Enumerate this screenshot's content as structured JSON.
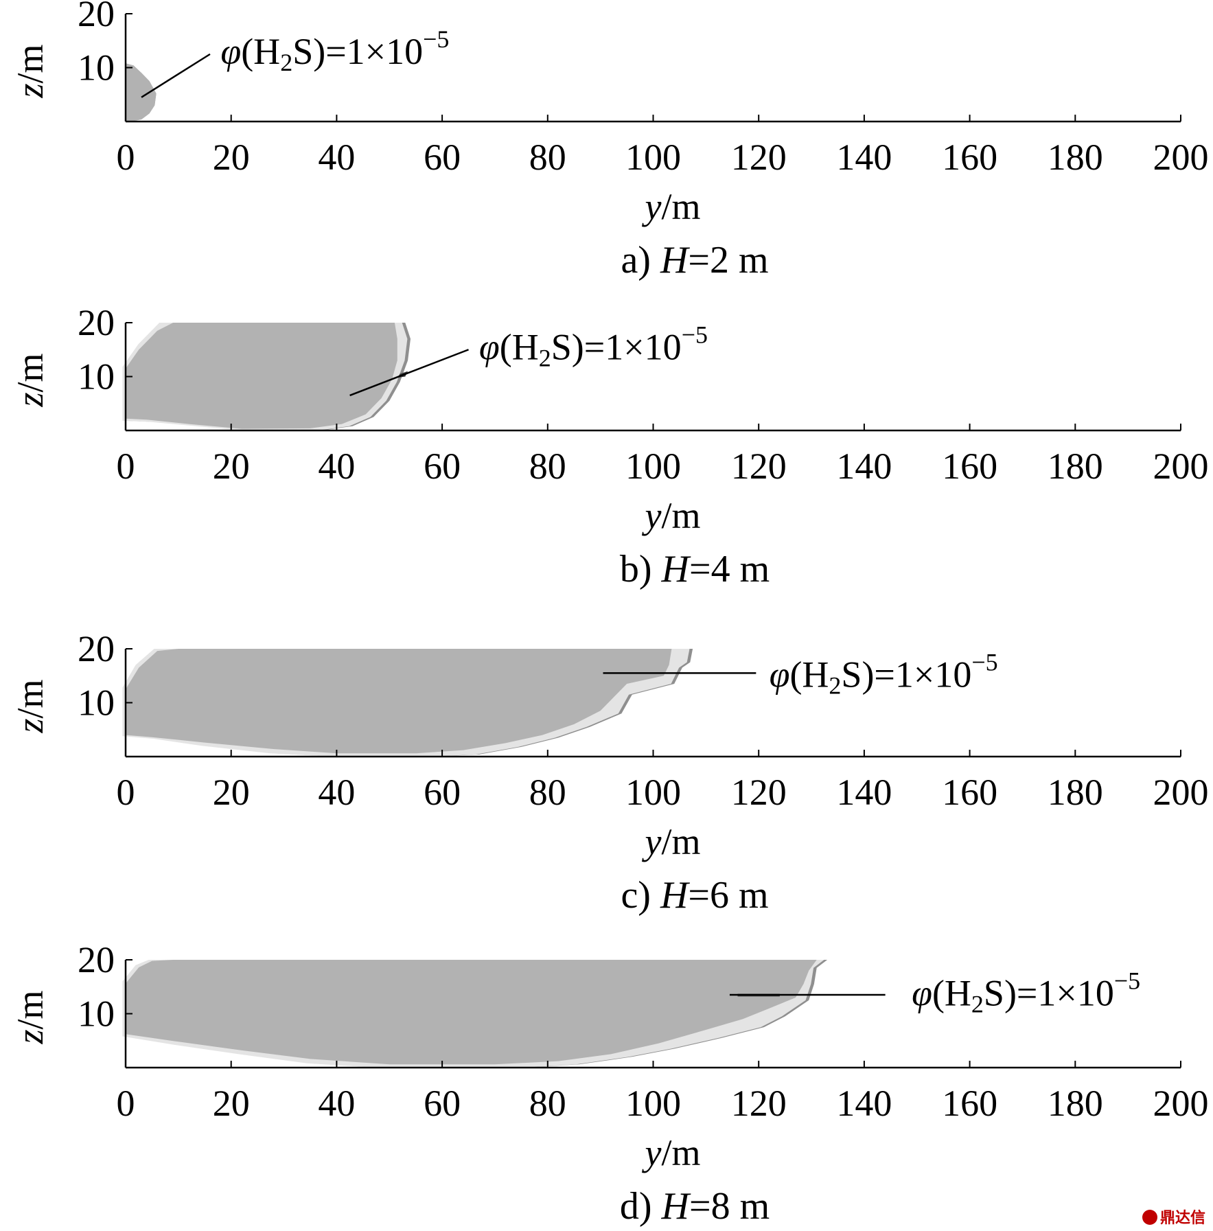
{
  "chart_data": [
    {
      "type": "area",
      "caption_prefix": "a) ",
      "caption_var": "H",
      "caption_suffix": "=2 m",
      "xlabel_var": "y",
      "xlabel_unit": "/m",
      "ylabel_var": "z",
      "ylabel_unit": "/m",
      "xlim": [
        0,
        200
      ],
      "ylim": [
        0,
        20
      ],
      "xticks": [
        0,
        20,
        40,
        60,
        80,
        100,
        120,
        140,
        160,
        180,
        200
      ],
      "yticks": [
        10,
        20
      ],
      "annotation": {
        "symbol": "φ",
        "species_pre": "(H",
        "species_sub": "2",
        "species_post": "S)=1×10",
        "exponent": "−5",
        "point": [
          3,
          4.5
        ],
        "line_end": [
          16,
          12.5
        ],
        "text_at": [
          18,
          13
        ]
      },
      "outer_boundary": [
        [
          0,
          0
        ],
        [
          0,
          10.8
        ],
        [
          1.5,
          10.4
        ],
        [
          3,
          9
        ],
        [
          4.5,
          7.5
        ],
        [
          5.8,
          5.2
        ],
        [
          5.5,
          3
        ],
        [
          4.5,
          1.5
        ],
        [
          3,
          0.4
        ],
        [
          1,
          0
        ]
      ],
      "inner_boundary": []
    },
    {
      "type": "area",
      "caption_prefix": "b) ",
      "caption_var": "H",
      "caption_suffix": "=4 m",
      "xlabel_var": "y",
      "xlabel_unit": "/m",
      "ylabel_var": "z",
      "ylabel_unit": "/m",
      "xlim": [
        0,
        200
      ],
      "ylim": [
        0,
        20
      ],
      "xticks": [
        0,
        20,
        40,
        60,
        80,
        100,
        120,
        140,
        160,
        180,
        200
      ],
      "yticks": [
        10,
        20
      ],
      "annotation": {
        "symbol": "φ",
        "species_pre": "(H",
        "species_sub": "2",
        "species_post": "S)=1×10",
        "exponent": "−5",
        "point": [
          42.5,
          6.5
        ],
        "line_end": [
          65,
          15
        ],
        "text_at": [
          67,
          15.5
        ]
      },
      "outer_boundary": [
        [
          0,
          1.8
        ],
        [
          0,
          11.8
        ],
        [
          3,
          16
        ],
        [
          7,
          20
        ],
        [
          53,
          20
        ],
        [
          54,
          17
        ],
        [
          53.5,
          13
        ],
        [
          52,
          9
        ],
        [
          50,
          5.5
        ],
        [
          47,
          2.5
        ],
        [
          43,
          0.8
        ],
        [
          37,
          0
        ],
        [
          23,
          0
        ],
        [
          14,
          0.8
        ],
        [
          5,
          1.6
        ]
      ],
      "inner_boundary": [
        [
          0,
          2.2
        ],
        [
          0,
          11.5
        ],
        [
          2.5,
          15
        ],
        [
          6,
          18.5
        ],
        [
          9,
          20
        ],
        [
          51,
          20
        ],
        [
          51.5,
          17
        ],
        [
          51.5,
          13
        ],
        [
          50.5,
          9.5
        ],
        [
          48.5,
          6
        ],
        [
          45.5,
          3
        ],
        [
          41,
          1.2
        ],
        [
          35,
          0.4
        ],
        [
          22,
          0.3
        ],
        [
          12,
          1.2
        ],
        [
          4,
          2
        ]
      ],
      "dark_fringe": [
        [
          52,
          10.5
        ],
        [
          53.5,
          11
        ],
        [
          53,
          10
        ],
        [
          51.5,
          9.8
        ]
      ]
    },
    {
      "type": "area",
      "caption_prefix": "c) ",
      "caption_var": "H",
      "caption_suffix": "=6 m",
      "xlabel_var": "y",
      "xlabel_unit": "/m",
      "ylabel_var": "z",
      "ylabel_unit": "/m",
      "xlim": [
        0,
        200
      ],
      "ylim": [
        0,
        20
      ],
      "xticks": [
        0,
        20,
        40,
        60,
        80,
        100,
        120,
        140,
        160,
        180,
        200
      ],
      "yticks": [
        10,
        20
      ],
      "annotation": {
        "symbol": "φ",
        "species_pre": "(H",
        "species_sub": "2",
        "species_post": "S)=1×10",
        "exponent": "−5",
        "point": [
          90.5,
          15.5
        ],
        "line_end": [
          119.5,
          15.5
        ],
        "text_at": [
          122,
          15.2
        ]
      },
      "outer_boundary": [
        [
          0,
          3.8
        ],
        [
          0,
          12.8
        ],
        [
          2.5,
          17
        ],
        [
          6,
          20
        ],
        [
          105.5,
          20
        ],
        [
          107.5,
          20
        ],
        [
          107,
          17.5
        ],
        [
          105.5,
          16.5
        ],
        [
          104,
          13.5
        ],
        [
          96,
          11.5
        ],
        [
          94,
          8
        ],
        [
          88,
          5.5
        ],
        [
          82,
          3.5
        ],
        [
          75,
          1.8
        ],
        [
          67,
          0.4
        ],
        [
          58,
          0
        ],
        [
          40,
          0
        ],
        [
          28,
          0.6
        ],
        [
          15,
          2
        ],
        [
          6,
          3.3
        ]
      ],
      "inner_boundary": [
        [
          0,
          4
        ],
        [
          0,
          12.5
        ],
        [
          2.5,
          16.5
        ],
        [
          6,
          19.6
        ],
        [
          10,
          20
        ],
        [
          103.5,
          20
        ],
        [
          103,
          17
        ],
        [
          102,
          15
        ],
        [
          95,
          13.5
        ],
        [
          93,
          11.5
        ],
        [
          90,
          8.5
        ],
        [
          85,
          6
        ],
        [
          79,
          4
        ],
        [
          72,
          2.5
        ],
        [
          64,
          1.2
        ],
        [
          55,
          0.6
        ],
        [
          40,
          0.6
        ],
        [
          28,
          1.4
        ],
        [
          15,
          2.6
        ],
        [
          5,
          3.6
        ]
      ]
    },
    {
      "type": "area",
      "caption_prefix": "d) ",
      "caption_var": "H",
      "caption_suffix": "=8 m",
      "xlabel_var": "y",
      "xlabel_unit": "/m",
      "ylabel_var": "z",
      "ylabel_unit": "/m",
      "xlim": [
        0,
        200
      ],
      "ylim": [
        0,
        20
      ],
      "xticks": [
        0,
        20,
        40,
        60,
        80,
        100,
        120,
        140,
        160,
        180,
        200
      ],
      "yticks": [
        10,
        20
      ],
      "annotation": {
        "symbol": "φ",
        "species_pre": "(H",
        "species_sub": "2",
        "species_post": "S)=1×10",
        "exponent": "−5",
        "point": [
          114.5,
          13.5
        ],
        "line_end": [
          144,
          13.5
        ],
        "text_at": [
          149,
          13.8
        ]
      },
      "outer_boundary": [
        [
          0,
          5.8
        ],
        [
          0,
          16
        ],
        [
          2.5,
          19
        ],
        [
          5,
          20
        ],
        [
          133,
          20
        ],
        [
          131,
          18.5
        ],
        [
          130.5,
          15.5
        ],
        [
          129.5,
          12.5
        ],
        [
          125,
          9.5
        ],
        [
          121,
          7.5
        ],
        [
          113,
          5.5
        ],
        [
          104,
          3.5
        ],
        [
          96,
          2
        ],
        [
          86,
          0.6
        ],
        [
          76,
          0
        ],
        [
          48,
          0
        ],
        [
          35,
          0.8
        ],
        [
          22,
          2.5
        ],
        [
          10,
          4.2
        ]
      ],
      "inner_boundary": [
        [
          0,
          6.2
        ],
        [
          0,
          15.6
        ],
        [
          2.5,
          18.6
        ],
        [
          5,
          19.8
        ],
        [
          9,
          20
        ],
        [
          131,
          20
        ],
        [
          129.5,
          18
        ],
        [
          128.5,
          15.5
        ],
        [
          127,
          13
        ],
        [
          122,
          11
        ],
        [
          117,
          9
        ],
        [
          110,
          7
        ],
        [
          101,
          4.5
        ],
        [
          92,
          2.5
        ],
        [
          82,
          1.2
        ],
        [
          70,
          0.6
        ],
        [
          50,
          0.6
        ],
        [
          35,
          1.6
        ],
        [
          22,
          3.2
        ],
        [
          10,
          4.8
        ]
      ],
      "dark_fringe": [
        [
          116,
          13.7
        ],
        [
          124,
          13.7
        ],
        [
          124,
          13.2
        ],
        [
          116,
          13.2
        ]
      ]
    }
  ],
  "watermark": "鼎达信"
}
